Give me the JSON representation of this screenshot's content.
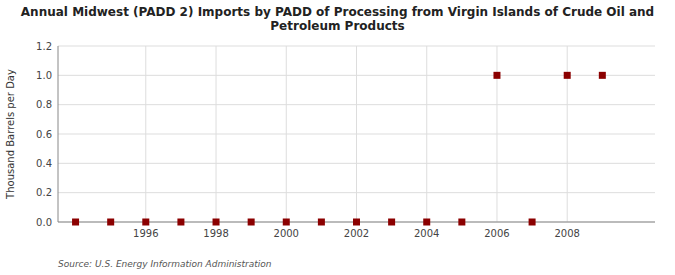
{
  "chart_data": {
    "type": "scatter",
    "title": "Annual Midwest (PADD 2) Imports by PADD of Processing from Virgin Islands of Crude Oil and\nPetroleum Products",
    "y_label": "Thousand Barrels per Day",
    "source": "Source: U.S. Energy Information Administration",
    "x": [
      1994,
      1995,
      1996,
      1997,
      1998,
      1999,
      2000,
      2001,
      2002,
      2003,
      2004,
      2005,
      2006,
      2007,
      2008,
      2009
    ],
    "values": [
      0.0,
      0.0,
      0.0,
      0.0,
      0.0,
      0.0,
      0.0,
      0.0,
      0.0,
      0.0,
      0.0,
      0.0,
      1.0,
      0.0,
      1.0,
      1.0
    ],
    "color": "#8b0000",
    "marker": "square",
    "xlim": [
      1993.5,
      2010.5
    ],
    "xticks": [
      1996,
      1998,
      2000,
      2002,
      2004,
      2006,
      2008
    ],
    "ylim": [
      0.0,
      1.2
    ],
    "yticks": [
      {
        "value": 0.0,
        "label": "0.0"
      },
      0.2,
      0.4,
      0.6,
      0.8,
      {
        "value": 1.0,
        "label": "1.0"
      },
      1.2
    ],
    "grid": true
  }
}
